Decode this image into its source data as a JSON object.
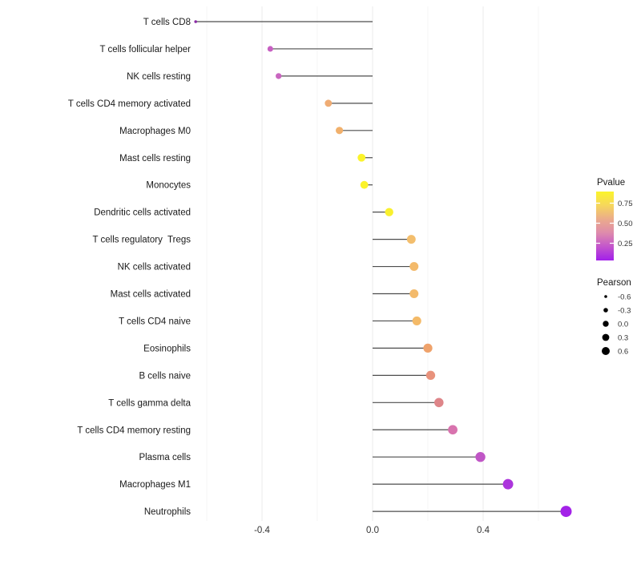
{
  "chart_data": {
    "type": "lollipop",
    "orientation": "horizontal",
    "title": "",
    "xlabel": "",
    "ylabel": "",
    "x_ticks": [
      -0.4,
      0.0,
      0.4
    ],
    "x_tick_labels": [
      "-0.4",
      "0.0",
      "0.4"
    ],
    "x_minor_gridlines": [
      -0.6,
      -0.2,
      0.2,
      0.6
    ],
    "xlim": [
      -0.76,
      0.79
    ],
    "grid": "vertical only, very light",
    "legend_position": "right",
    "size_encoding": "Pearson",
    "color_encoding": "Pvalue",
    "rows": [
      {
        "label": "T cells CD8",
        "pearson": -0.64,
        "color": "#8A2BA5"
      },
      {
        "label": "T cells follicular helper",
        "pearson": -0.37,
        "color": "#C760C2"
      },
      {
        "label": "NK cells resting",
        "pearson": -0.34,
        "color": "#C966C0"
      },
      {
        "label": "T cells CD4 memory activated",
        "pearson": -0.16,
        "color": "#EFAC74"
      },
      {
        "label": "Macrophages M0",
        "pearson": -0.12,
        "color": "#F1B06C"
      },
      {
        "label": "Mast cells resting",
        "pearson": -0.04,
        "color": "#FBF32B"
      },
      {
        "label": "Monocytes",
        "pearson": -0.03,
        "color": "#FBF32B"
      },
      {
        "label": "Dendritic cells activated",
        "pearson": 0.06,
        "color": "#F9F02E"
      },
      {
        "label": "T cells regulatory  Tregs",
        "pearson": 0.14,
        "color": "#F3BE6D"
      },
      {
        "label": "NK cells activated",
        "pearson": 0.15,
        "color": "#F3BA6B"
      },
      {
        "label": "Mast cells activated",
        "pearson": 0.15,
        "color": "#F3BA6B"
      },
      {
        "label": "T cells CD4 naive",
        "pearson": 0.16,
        "color": "#F4BA68"
      },
      {
        "label": "Eosinophils",
        "pearson": 0.2,
        "color": "#EFA26B"
      },
      {
        "label": "B cells naive",
        "pearson": 0.21,
        "color": "#E8927C"
      },
      {
        "label": "T cells gamma delta",
        "pearson": 0.24,
        "color": "#DE8589"
      },
      {
        "label": "T cells CD4 memory resting",
        "pearson": 0.29,
        "color": "#D873AE"
      },
      {
        "label": "Plasma cells",
        "pearson": 0.39,
        "color": "#C056C6"
      },
      {
        "label": "Macrophages M1",
        "pearson": 0.49,
        "color": "#AC35DC"
      },
      {
        "label": "Neutrophils",
        "pearson": 0.7,
        "color": "#A322E8"
      }
    ]
  },
  "legend": {
    "pvalue": {
      "title": "Pvalue",
      "tick_labels": [
        "0.75",
        "0.50",
        "0.25"
      ],
      "gradient_stops": [
        "#FBF42B",
        "#F6D75C",
        "#EBAB8B",
        "#DE8BAC",
        "#C355CC",
        "#A21FEA"
      ]
    },
    "pearson": {
      "title": "Pearson",
      "tick_labels": [
        "-0.6",
        "-0.3",
        "0.0",
        "0.3",
        "0.6"
      ],
      "dot_color": "#000000"
    }
  },
  "style": {
    "stem_color": "#4D4D4D",
    "axis_text_color": "#333333",
    "label_text_color": "#1A1A1A",
    "major_grid_color": "#EBEBEB",
    "minor_grid_color": "#F4F4F4",
    "background": "#FFFFFF"
  }
}
